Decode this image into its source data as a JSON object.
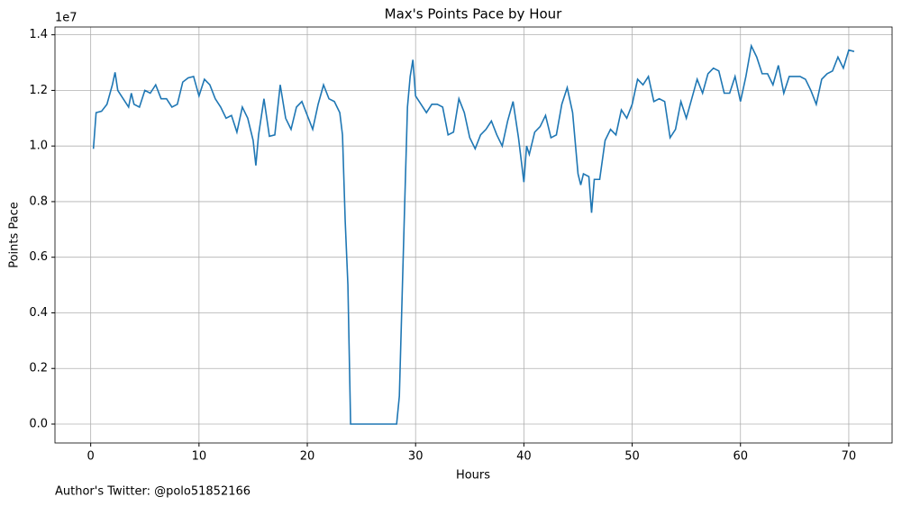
{
  "chart_data": {
    "type": "line",
    "title": "Max's Points Pace by Hour",
    "x_label": "Hours",
    "y_label": "Points Pace",
    "y_offset_label": "1e7",
    "footer": "Author's Twitter: @polo51852166",
    "grid": true,
    "xlim": [
      -3.3,
      74
    ],
    "ylim": [
      -0.068,
      1.428
    ],
    "xticks": [
      0,
      10,
      20,
      30,
      40,
      50,
      60,
      70
    ],
    "yticks": [
      {
        "value": 0,
        "label": "0.0"
      },
      0.2,
      0.4,
      0.6,
      0.8,
      {
        "value": 1,
        "label": "1.0"
      },
      1.2,
      1.4
    ],
    "x": [
      0.25,
      0.5,
      1,
      1.5,
      2,
      2.25,
      2.5,
      3,
      3.5,
      3.75,
      4,
      4.5,
      5,
      5.5,
      6,
      6.5,
      7,
      7.5,
      8,
      8.5,
      9,
      9.5,
      10,
      10.5,
      11,
      11.5,
      12,
      12.5,
      13,
      13.5,
      14,
      14.5,
      15,
      15.25,
      15.5,
      16,
      16.5,
      17,
      17.5,
      18,
      18.5,
      19,
      19.5,
      20,
      20.5,
      21,
      21.5,
      22,
      22.5,
      23,
      23.25,
      23.5,
      23.75,
      24,
      25,
      26,
      27,
      28,
      28.25,
      28.5,
      29,
      29.25,
      29.5,
      29.75,
      30,
      30.5,
      31,
      31.5,
      32,
      32.5,
      33,
      33.5,
      34,
      34.5,
      35,
      35.5,
      36,
      36.5,
      37,
      37.5,
      38,
      38.5,
      39,
      39.5,
      40,
      40.25,
      40.5,
      41,
      41.5,
      42,
      42.5,
      43,
      43.5,
      44,
      44.5,
      45,
      45.25,
      45.5,
      46,
      46.25,
      46.5,
      47,
      47.5,
      48,
      48.5,
      49,
      49.5,
      50,
      50.5,
      51,
      51.5,
      52,
      52.5,
      53,
      53.5,
      54,
      54.5,
      55,
      55.5,
      56,
      56.5,
      57,
      57.5,
      58,
      58.5,
      59,
      59.5,
      60,
      60.5,
      61,
      61.5,
      62,
      62.5,
      63,
      63.5,
      64,
      64.5,
      65,
      65.5,
      66,
      66.5,
      67,
      67.5,
      68,
      68.5,
      69,
      69.5,
      70,
      70.5
    ],
    "series": [
      {
        "name": "Points Pace",
        "color": "#1f77b4",
        "values": [
          0.99,
          1.12,
          1.125,
          1.15,
          1.22,
          1.265,
          1.2,
          1.17,
          1.14,
          1.19,
          1.15,
          1.14,
          1.2,
          1.19,
          1.22,
          1.17,
          1.17,
          1.14,
          1.15,
          1.23,
          1.245,
          1.25,
          1.18,
          1.24,
          1.22,
          1.17,
          1.14,
          1.1,
          1.11,
          1.05,
          1.14,
          1.1,
          1.02,
          0.93,
          1.04,
          1.17,
          1.035,
          1.04,
          1.22,
          1.1,
          1.06,
          1.14,
          1.16,
          1.11,
          1.06,
          1.15,
          1.22,
          1.17,
          1.16,
          1.12,
          1.04,
          0.73,
          0.5,
          0,
          0,
          0,
          0,
          0,
          0,
          0.1,
          0.8,
          1.14,
          1.25,
          1.31,
          1.18,
          1.15,
          1.12,
          1.15,
          1.15,
          1.14,
          1.04,
          1.05,
          1.17,
          1.12,
          1.03,
          0.99,
          1.04,
          1.06,
          1.09,
          1.04,
          1.0,
          1.09,
          1.16,
          1.03,
          0.87,
          1.0,
          0.97,
          1.05,
          1.07,
          1.11,
          1.03,
          1.04,
          1.15,
          1.21,
          1.12,
          0.9,
          0.86,
          0.9,
          0.89,
          0.76,
          0.88,
          0.88,
          1.02,
          1.06,
          1.04,
          1.13,
          1.1,
          1.15,
          1.24,
          1.22,
          1.25,
          1.16,
          1.17,
          1.16,
          1.03,
          1.06,
          1.16,
          1.1,
          1.17,
          1.24,
          1.19,
          1.26,
          1.28,
          1.27,
          1.19,
          1.19,
          1.25,
          1.16,
          1.25,
          1.36,
          1.32,
          1.26,
          1.26,
          1.22,
          1.29,
          1.19,
          1.25,
          1.25,
          1.25,
          1.24,
          1.2,
          1.15,
          1.24,
          1.26,
          1.27,
          1.32,
          1.28,
          1.345,
          1.34
        ]
      }
    ]
  }
}
